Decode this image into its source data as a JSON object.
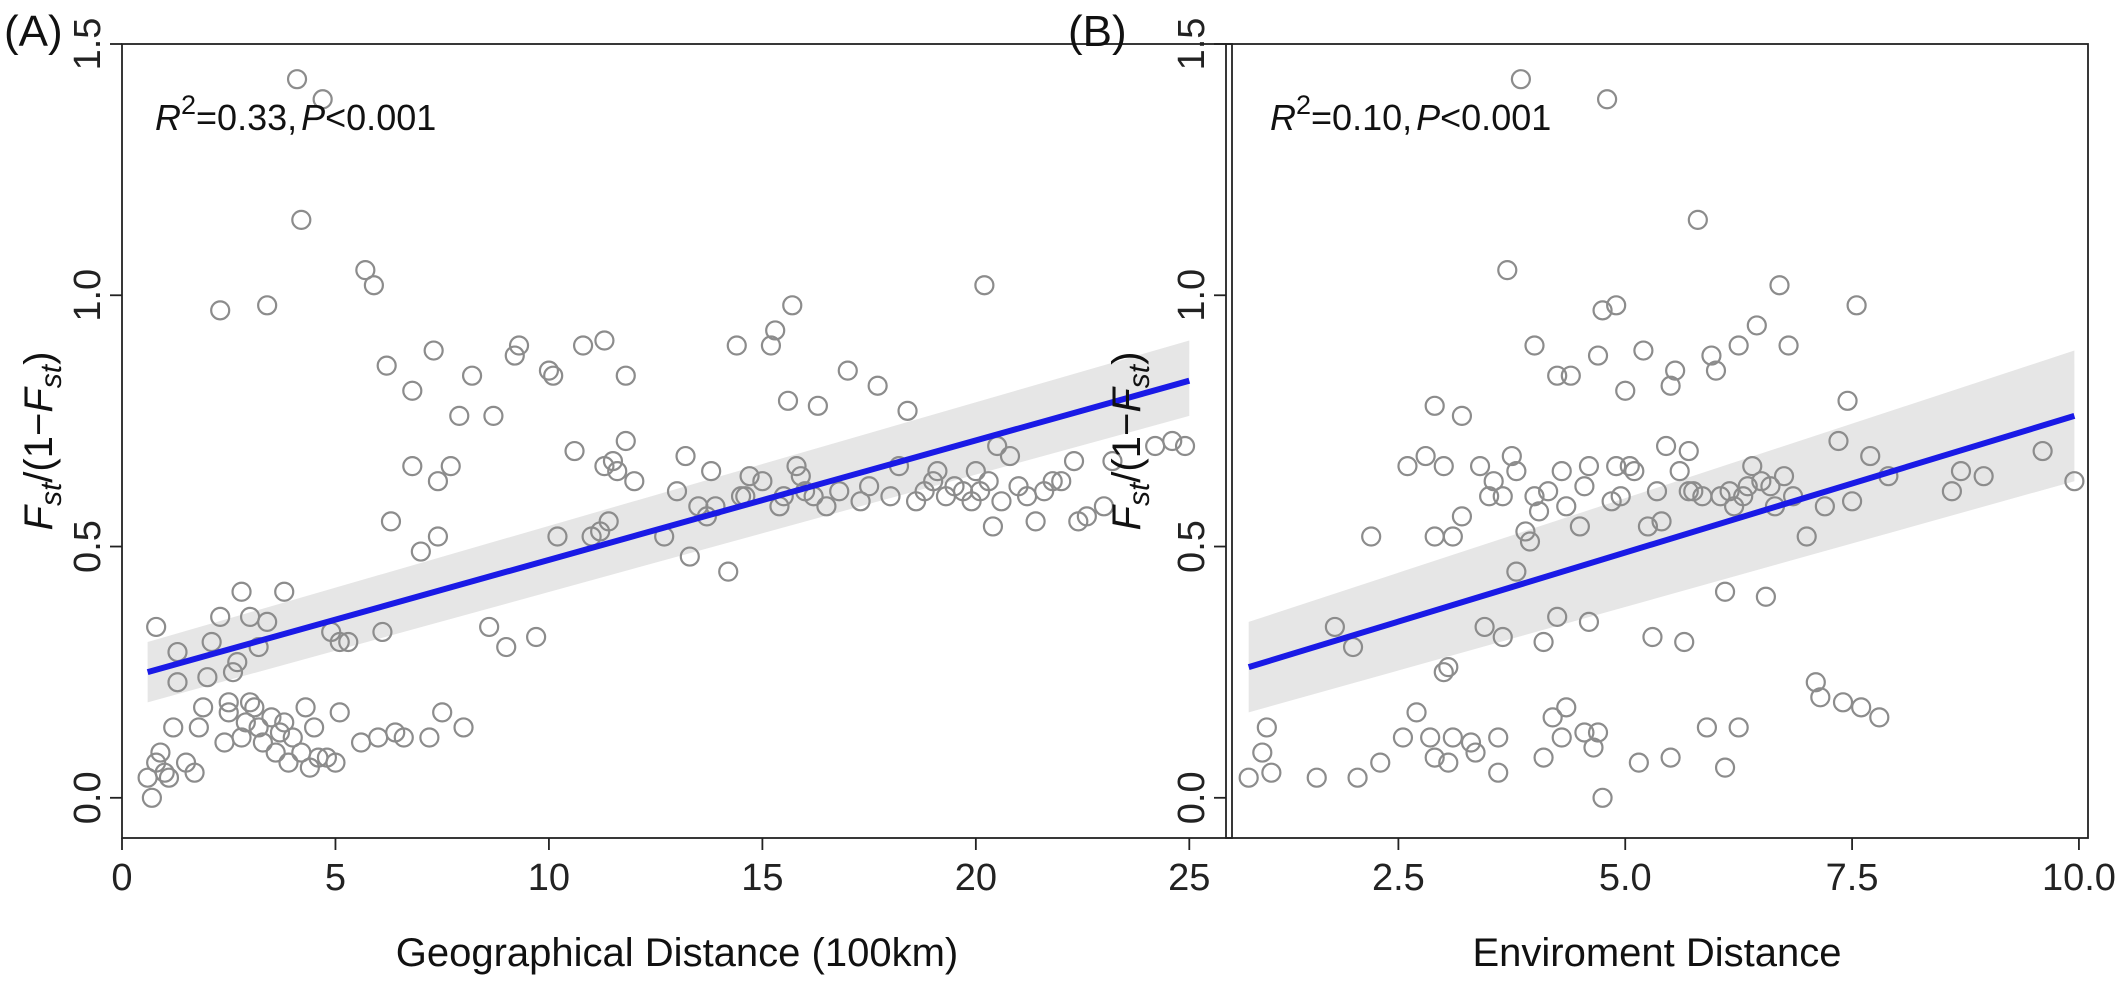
{
  "chart_data": [
    {
      "type": "scatter",
      "panel_label": "(A)",
      "xlabel": "Geographical Distance (100km)",
      "ylabel_main": "F",
      "ylabel_sub": "st",
      "ylabel_mid": "/(1−",
      "ylabel_main2": "F",
      "ylabel_sub2": "st",
      "ylabel_close": ")",
      "xlim": [
        0,
        26
      ],
      "ylim": [
        -0.08,
        1.5
      ],
      "xticks": [
        0,
        5,
        10,
        15,
        20,
        25
      ],
      "xtick_labels": [
        "0",
        "5",
        "10",
        "15",
        "20",
        "25"
      ],
      "yticks": [
        0.0,
        0.5,
        1.0,
        1.5
      ],
      "ytick_labels": [
        "0.0",
        "0.5",
        "1.0",
        "1.5"
      ],
      "annotation": {
        "r2_symbol": "R",
        "r2_sup": "2",
        "r2_value": "=0.33,",
        "p_symbol": "P",
        "p_value": "<0.001"
      },
      "fit": {
        "x": [
          0.6,
          25.0
        ],
        "y": [
          0.25,
          0.83
        ],
        "ci_lower": [
          0.19,
          0.76
        ],
        "ci_upper": [
          0.31,
          0.91
        ]
      },
      "points": [
        [
          0.6,
          0.04
        ],
        [
          0.7,
          0.0
        ],
        [
          0.8,
          0.07
        ],
        [
          0.8,
          0.34
        ],
        [
          0.9,
          0.09
        ],
        [
          1.0,
          0.05
        ],
        [
          1.1,
          0.04
        ],
        [
          1.2,
          0.14
        ],
        [
          1.3,
          0.29
        ],
        [
          1.3,
          0.23
        ],
        [
          1.5,
          0.07
        ],
        [
          1.7,
          0.05
        ],
        [
          1.8,
          0.14
        ],
        [
          1.9,
          0.18
        ],
        [
          2.0,
          0.24
        ],
        [
          2.1,
          0.31
        ],
        [
          2.3,
          0.36
        ],
        [
          2.3,
          0.97
        ],
        [
          2.4,
          0.11
        ],
        [
          2.5,
          0.17
        ],
        [
          2.5,
          0.19
        ],
        [
          2.6,
          0.25
        ],
        [
          2.7,
          0.27
        ],
        [
          2.8,
          0.12
        ],
        [
          2.8,
          0.41
        ],
        [
          2.9,
          0.15
        ],
        [
          3.0,
          0.19
        ],
        [
          3.0,
          0.36
        ],
        [
          3.1,
          0.18
        ],
        [
          3.2,
          0.14
        ],
        [
          3.2,
          0.3
        ],
        [
          3.3,
          0.11
        ],
        [
          3.4,
          0.98
        ],
        [
          3.4,
          0.35
        ],
        [
          3.5,
          0.16
        ],
        [
          3.6,
          0.09
        ],
        [
          3.7,
          0.13
        ],
        [
          3.8,
          0.15
        ],
        [
          3.8,
          0.41
        ],
        [
          3.9,
          0.07
        ],
        [
          4.0,
          0.12
        ],
        [
          4.1,
          1.43
        ],
        [
          4.2,
          0.09
        ],
        [
          4.2,
          1.15
        ],
        [
          4.3,
          0.18
        ],
        [
          4.4,
          0.06
        ],
        [
          4.5,
          0.14
        ],
        [
          4.6,
          0.08
        ],
        [
          4.7,
          1.39
        ],
        [
          4.8,
          0.08
        ],
        [
          4.9,
          0.33
        ],
        [
          5.0,
          0.07
        ],
        [
          5.1,
          0.31
        ],
        [
          5.1,
          0.17
        ],
        [
          5.3,
          0.31
        ],
        [
          5.6,
          0.11
        ],
        [
          5.7,
          1.05
        ],
        [
          5.9,
          1.02
        ],
        [
          6.0,
          0.12
        ],
        [
          6.1,
          0.33
        ],
        [
          6.2,
          0.86
        ],
        [
          6.3,
          0.55
        ],
        [
          6.4,
          0.13
        ],
        [
          6.6,
          0.12
        ],
        [
          6.8,
          0.81
        ],
        [
          6.8,
          0.66
        ],
        [
          7.0,
          0.49
        ],
        [
          7.2,
          0.12
        ],
        [
          7.3,
          0.89
        ],
        [
          7.4,
          0.52
        ],
        [
          7.4,
          0.63
        ],
        [
          7.5,
          0.17
        ],
        [
          7.7,
          0.66
        ],
        [
          7.9,
          0.76
        ],
        [
          8.0,
          0.14
        ],
        [
          8.2,
          0.84
        ],
        [
          8.6,
          0.34
        ],
        [
          8.7,
          0.76
        ],
        [
          9.0,
          0.3
        ],
        [
          9.2,
          0.88
        ],
        [
          9.3,
          0.9
        ],
        [
          9.7,
          0.32
        ],
        [
          10.0,
          0.85
        ],
        [
          10.1,
          0.84
        ],
        [
          10.2,
          0.52
        ],
        [
          10.6,
          0.69
        ],
        [
          10.8,
          0.9
        ],
        [
          11.0,
          0.52
        ],
        [
          11.2,
          0.53
        ],
        [
          11.3,
          0.91
        ],
        [
          11.3,
          0.66
        ],
        [
          11.4,
          0.55
        ],
        [
          11.5,
          0.67
        ],
        [
          11.6,
          0.65
        ],
        [
          11.8,
          0.84
        ],
        [
          11.8,
          0.71
        ],
        [
          12.0,
          0.63
        ],
        [
          12.7,
          0.52
        ],
        [
          13.0,
          0.61
        ],
        [
          13.2,
          0.68
        ],
        [
          13.3,
          0.48
        ],
        [
          13.5,
          0.58
        ],
        [
          13.7,
          0.56
        ],
        [
          13.8,
          0.65
        ],
        [
          13.9,
          0.58
        ],
        [
          14.2,
          0.45
        ],
        [
          14.4,
          0.9
        ],
        [
          14.5,
          0.6
        ],
        [
          14.6,
          0.6
        ],
        [
          14.7,
          0.64
        ],
        [
          15.0,
          0.63
        ],
        [
          15.2,
          0.9
        ],
        [
          15.3,
          0.93
        ],
        [
          15.4,
          0.58
        ],
        [
          15.5,
          0.6
        ],
        [
          15.6,
          0.79
        ],
        [
          15.7,
          0.98
        ],
        [
          15.8,
          0.66
        ],
        [
          15.9,
          0.64
        ],
        [
          16.0,
          0.61
        ],
        [
          16.2,
          0.6
        ],
        [
          16.3,
          0.78
        ],
        [
          16.5,
          0.58
        ],
        [
          16.8,
          0.61
        ],
        [
          17.0,
          0.85
        ],
        [
          17.3,
          0.59
        ],
        [
          17.5,
          0.62
        ],
        [
          17.7,
          0.82
        ],
        [
          18.0,
          0.6
        ],
        [
          18.2,
          0.66
        ],
        [
          18.4,
          0.77
        ],
        [
          18.6,
          0.59
        ],
        [
          18.8,
          0.61
        ],
        [
          19.0,
          0.63
        ],
        [
          19.1,
          0.65
        ],
        [
          19.3,
          0.6
        ],
        [
          19.5,
          0.62
        ],
        [
          19.7,
          0.61
        ],
        [
          19.9,
          0.59
        ],
        [
          20.0,
          0.65
        ],
        [
          20.1,
          0.61
        ],
        [
          20.2,
          1.02
        ],
        [
          20.3,
          0.63
        ],
        [
          20.4,
          0.54
        ],
        [
          20.5,
          0.7
        ],
        [
          20.6,
          0.59
        ],
        [
          20.8,
          0.68
        ],
        [
          21.0,
          0.62
        ],
        [
          21.2,
          0.6
        ],
        [
          21.4,
          0.55
        ],
        [
          21.6,
          0.61
        ],
        [
          21.8,
          0.63
        ],
        [
          22.0,
          0.63
        ],
        [
          22.3,
          0.67
        ],
        [
          22.4,
          0.55
        ],
        [
          22.6,
          0.56
        ],
        [
          23.0,
          0.58
        ],
        [
          23.2,
          0.67
        ],
        [
          24.2,
          0.7
        ],
        [
          24.6,
          0.71
        ],
        [
          24.9,
          0.7
        ]
      ]
    },
    {
      "type": "scatter",
      "panel_label": "(B)",
      "xlabel": "Enviroment Distance",
      "ylabel_main": "F",
      "ylabel_sub": "st",
      "ylabel_mid": "/(1−",
      "ylabel_main2": "F",
      "ylabel_sub2": "st",
      "ylabel_close": ")",
      "xlim": [
        0.6,
        10.1
      ],
      "ylim": [
        -0.08,
        1.5
      ],
      "xticks": [
        2.5,
        5.0,
        7.5,
        10.0
      ],
      "xtick_labels": [
        "2.5",
        "5.0",
        "7.5",
        "10.0"
      ],
      "yticks": [
        0.0,
        0.5,
        1.0,
        1.5
      ],
      "ytick_labels": [
        "0.0",
        "0.5",
        "1.0",
        "1.5"
      ],
      "annotation": {
        "r2_symbol": "R",
        "r2_sup": "2",
        "r2_value": "=0.10,",
        "p_symbol": "P",
        "p_value": "<0.001"
      },
      "fit": {
        "x": [
          0.85,
          9.95
        ],
        "y": [
          0.26,
          0.76
        ],
        "ci_lower": [
          0.17,
          0.63
        ],
        "ci_upper": [
          0.35,
          0.89
        ]
      },
      "points": [
        [
          0.85,
          0.04
        ],
        [
          1.0,
          0.09
        ],
        [
          1.05,
          0.14
        ],
        [
          1.1,
          0.05
        ],
        [
          1.6,
          0.04
        ],
        [
          1.8,
          0.34
        ],
        [
          2.0,
          0.3
        ],
        [
          2.05,
          0.04
        ],
        [
          2.2,
          0.52
        ],
        [
          2.3,
          0.07
        ],
        [
          2.55,
          0.12
        ],
        [
          2.6,
          0.66
        ],
        [
          2.7,
          0.17
        ],
        [
          2.8,
          0.68
        ],
        [
          2.85,
          0.12
        ],
        [
          2.9,
          0.08
        ],
        [
          2.9,
          0.78
        ],
        [
          2.9,
          0.52
        ],
        [
          3.0,
          0.66
        ],
        [
          3.0,
          0.25
        ],
        [
          3.05,
          0.26
        ],
        [
          3.05,
          0.07
        ],
        [
          3.1,
          0.52
        ],
        [
          3.1,
          0.12
        ],
        [
          3.2,
          0.76
        ],
        [
          3.2,
          0.56
        ],
        [
          3.3,
          0.11
        ],
        [
          3.35,
          0.09
        ],
        [
          3.4,
          0.66
        ],
        [
          3.45,
          0.34
        ],
        [
          3.5,
          0.6
        ],
        [
          3.55,
          0.63
        ],
        [
          3.6,
          0.05
        ],
        [
          3.6,
          0.12
        ],
        [
          3.65,
          0.6
        ],
        [
          3.65,
          0.32
        ],
        [
          3.7,
          1.05
        ],
        [
          3.75,
          0.68
        ],
        [
          3.8,
          0.65
        ],
        [
          3.8,
          0.45
        ],
        [
          3.85,
          1.43
        ],
        [
          3.9,
          0.53
        ],
        [
          3.95,
          0.51
        ],
        [
          4.0,
          0.9
        ],
        [
          4.0,
          0.6
        ],
        [
          4.05,
          0.57
        ],
        [
          4.1,
          0.31
        ],
        [
          4.1,
          0.08
        ],
        [
          4.15,
          0.61
        ],
        [
          4.2,
          0.16
        ],
        [
          4.25,
          0.84
        ],
        [
          4.25,
          0.36
        ],
        [
          4.3,
          0.65
        ],
        [
          4.3,
          0.12
        ],
        [
          4.35,
          0.58
        ],
        [
          4.35,
          0.18
        ],
        [
          4.4,
          0.84
        ],
        [
          4.5,
          0.54
        ],
        [
          4.55,
          0.62
        ],
        [
          4.55,
          0.13
        ],
        [
          4.6,
          0.66
        ],
        [
          4.6,
          0.35
        ],
        [
          4.65,
          0.1
        ],
        [
          4.7,
          0.88
        ],
        [
          4.7,
          0.13
        ],
        [
          4.75,
          0.97
        ],
        [
          4.75,
          0.0
        ],
        [
          4.8,
          1.39
        ],
        [
          4.85,
          0.59
        ],
        [
          4.9,
          0.98
        ],
        [
          4.9,
          0.66
        ],
        [
          4.95,
          0.6
        ],
        [
          5.0,
          0.81
        ],
        [
          5.05,
          0.66
        ],
        [
          5.1,
          0.65
        ],
        [
          5.15,
          0.07
        ],
        [
          5.2,
          0.89
        ],
        [
          5.25,
          0.54
        ],
        [
          5.3,
          0.32
        ],
        [
          5.35,
          0.61
        ],
        [
          5.4,
          0.55
        ],
        [
          5.45,
          0.7
        ],
        [
          5.5,
          0.82
        ],
        [
          5.5,
          0.08
        ],
        [
          5.55,
          0.85
        ],
        [
          5.6,
          0.65
        ],
        [
          5.65,
          0.31
        ],
        [
          5.7,
          0.69
        ],
        [
          5.7,
          0.61
        ],
        [
          5.75,
          0.61
        ],
        [
          5.8,
          1.15
        ],
        [
          5.85,
          0.6
        ],
        [
          5.9,
          0.14
        ],
        [
          5.95,
          0.88
        ],
        [
          6.0,
          0.85
        ],
        [
          6.05,
          0.6
        ],
        [
          6.1,
          0.41
        ],
        [
          6.1,
          0.06
        ],
        [
          6.15,
          0.61
        ],
        [
          6.2,
          0.58
        ],
        [
          6.25,
          0.9
        ],
        [
          6.25,
          0.14
        ],
        [
          6.3,
          0.6
        ],
        [
          6.35,
          0.62
        ],
        [
          6.4,
          0.66
        ],
        [
          6.45,
          0.94
        ],
        [
          6.5,
          0.63
        ],
        [
          6.55,
          0.4
        ],
        [
          6.6,
          0.62
        ],
        [
          6.65,
          0.58
        ],
        [
          6.7,
          1.02
        ],
        [
          6.75,
          0.64
        ],
        [
          6.8,
          0.9
        ],
        [
          6.85,
          0.6
        ],
        [
          7.0,
          0.52
        ],
        [
          7.1,
          0.23
        ],
        [
          7.15,
          0.2
        ],
        [
          7.2,
          0.58
        ],
        [
          7.35,
          0.71
        ],
        [
          7.4,
          0.19
        ],
        [
          7.45,
          0.79
        ],
        [
          7.5,
          0.59
        ],
        [
          7.55,
          0.98
        ],
        [
          7.6,
          0.18
        ],
        [
          7.7,
          0.68
        ],
        [
          7.8,
          0.16
        ],
        [
          7.9,
          0.64
        ],
        [
          8.6,
          0.61
        ],
        [
          8.7,
          0.65
        ],
        [
          8.95,
          0.64
        ],
        [
          9.6,
          0.69
        ],
        [
          9.95,
          0.63
        ]
      ]
    }
  ]
}
